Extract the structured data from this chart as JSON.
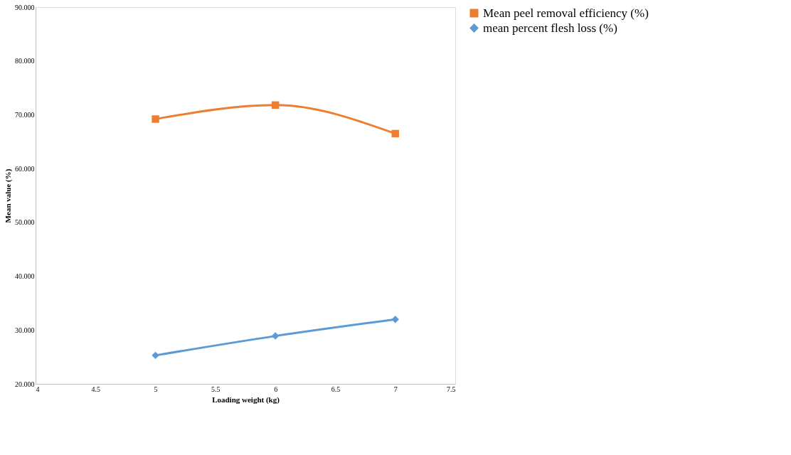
{
  "chart_data": {
    "type": "line",
    "xlabel": "Loading weight (kg)",
    "ylabel": "Mean value (%)",
    "xlim": [
      4,
      7.5
    ],
    "xticks": [
      4,
      4.5,
      5,
      5.5,
      6,
      6.5,
      7,
      7.5
    ],
    "ylim": [
      20,
      90
    ],
    "yticks": [
      {
        "value": 20,
        "label": "20.000"
      },
      {
        "value": 30,
        "label": "30.000"
      },
      {
        "value": 40,
        "label": "40.000"
      },
      {
        "value": 50,
        "label": "50.000"
      },
      {
        "value": 60,
        "label": "60.000"
      },
      {
        "value": 70,
        "label": "70.000"
      },
      {
        "value": 80,
        "label": "80.000"
      },
      {
        "value": 90,
        "label": "90.000"
      }
    ],
    "grid": false,
    "legend": "right",
    "line_style": "solid",
    "x": [
      5,
      6,
      7
    ],
    "series": [
      {
        "name": "Mean peel removal efficiency (%)",
        "color": "#ed7d31",
        "marker": "square",
        "values": [
          69.2,
          71.8,
          66.5
        ]
      },
      {
        "name": "mean percent flesh loss (%)",
        "color": "#5b9bd5",
        "marker": "diamond",
        "values": [
          25.3,
          28.9,
          32.0
        ]
      }
    ]
  }
}
